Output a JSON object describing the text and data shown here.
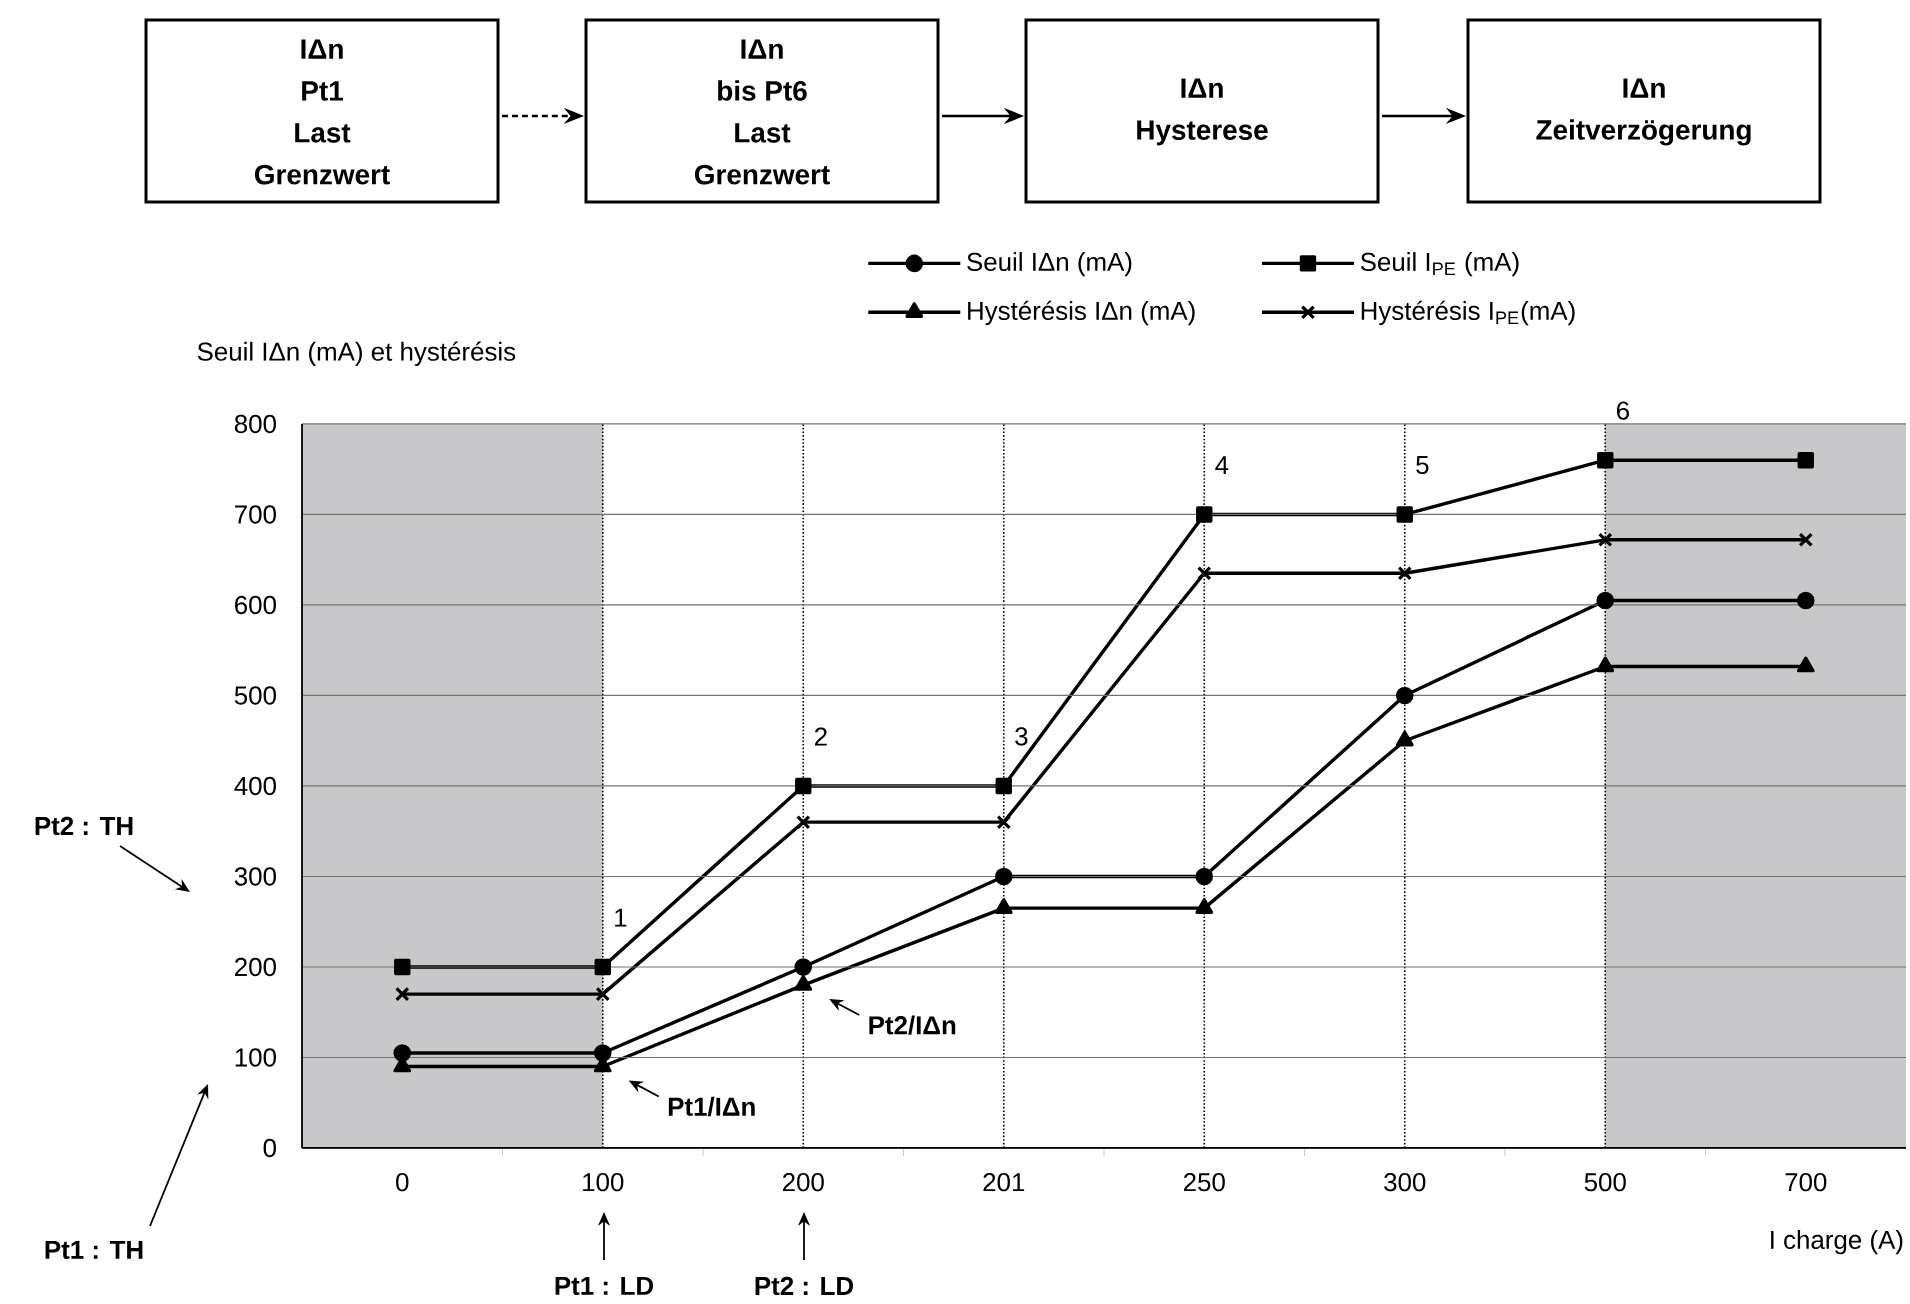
{
  "chart_data": {
    "type": "line",
    "ylabel": "Seuil IΔn (mA) et hystérésis",
    "xlabel": "I charge (A)",
    "categories": [
      "0",
      "100",
      "200",
      "201",
      "250",
      "300",
      "500",
      "700"
    ],
    "series": [
      {
        "name": "Seuil IΔn (mA)",
        "color": "#000000",
        "marker": "circle",
        "values": [
          105,
          105,
          200,
          300,
          300,
          500,
          605,
          605
        ]
      },
      {
        "name": "Seuil I$_{PE}$ (mA)",
        "color": "#000000",
        "marker": "square",
        "values": [
          200,
          200,
          400,
          400,
          700,
          700,
          760,
          760
        ]
      },
      {
        "name": "Hystérésis IΔn (mA)",
        "color": "#000000",
        "marker": "triangle",
        "values": [
          90,
          90,
          180,
          265,
          265,
          450,
          532,
          532
        ]
      },
      {
        "name": "Hystérésis I$_{PE}$(mA)",
        "color": "#000000",
        "marker": "cross",
        "values": [
          170,
          170,
          360,
          360,
          635,
          635,
          672,
          672
        ]
      }
    ],
    "ylim": [
      0,
      800
    ],
    "yticks": [
      0,
      100,
      200,
      300,
      400,
      500,
      600,
      700,
      800
    ],
    "grid": "y",
    "legend": "top right",
    "ref_lines": [
      {
        "axis": "x",
        "value": "100",
        "color": "#000000",
        "line_style": "dotted"
      },
      {
        "axis": "x",
        "value": "200",
        "color": "#000000",
        "line_style": "dotted"
      },
      {
        "axis": "x",
        "value": "201",
        "color": "#000000",
        "line_style": "dotted"
      },
      {
        "axis": "x",
        "value": "250",
        "color": "#000000",
        "line_style": "dotted"
      },
      {
        "axis": "x",
        "value": "300",
        "color": "#000000",
        "line_style": "dotted"
      },
      {
        "axis": "x",
        "value": "500",
        "color": "#000000",
        "line_style": "dotted"
      }
    ],
    "bands": [
      {
        "axis": "x",
        "from": "0",
        "to": "100",
        "color": "#c8c8ca"
      },
      {
        "axis": "x",
        "from": "500",
        "to": "700",
        "color": "#c8c8ca"
      }
    ],
    "annotations": [
      {
        "text": "1",
        "x": "100",
        "y": 200
      },
      {
        "text": "2",
        "x": "200",
        "y": 400
      },
      {
        "text": "3",
        "x": "201",
        "y": 400
      },
      {
        "text": "4",
        "x": "250",
        "y": 700
      },
      {
        "text": "5",
        "x": "300",
        "y": 700
      },
      {
        "text": "6",
        "x": "500",
        "y": 760
      },
      {
        "text": "Pt1/IΔn",
        "x": "100",
        "y": 90
      },
      {
        "text": "Pt2/IΔn",
        "x": "200",
        "y": 180
      },
      "Pt1 : LD",
      "Pt2 : LD",
      "Pt2 : TH",
      "Pt1 : TH",
      "IΔn",
      "Pt1",
      "Last",
      "Grenzwert",
      "IΔn",
      "bis Pt6",
      "Last",
      "Grenzwert",
      "IΔn",
      "Hysterese",
      "IΔn",
      "Zeitverzögerung"
    ]
  }
}
